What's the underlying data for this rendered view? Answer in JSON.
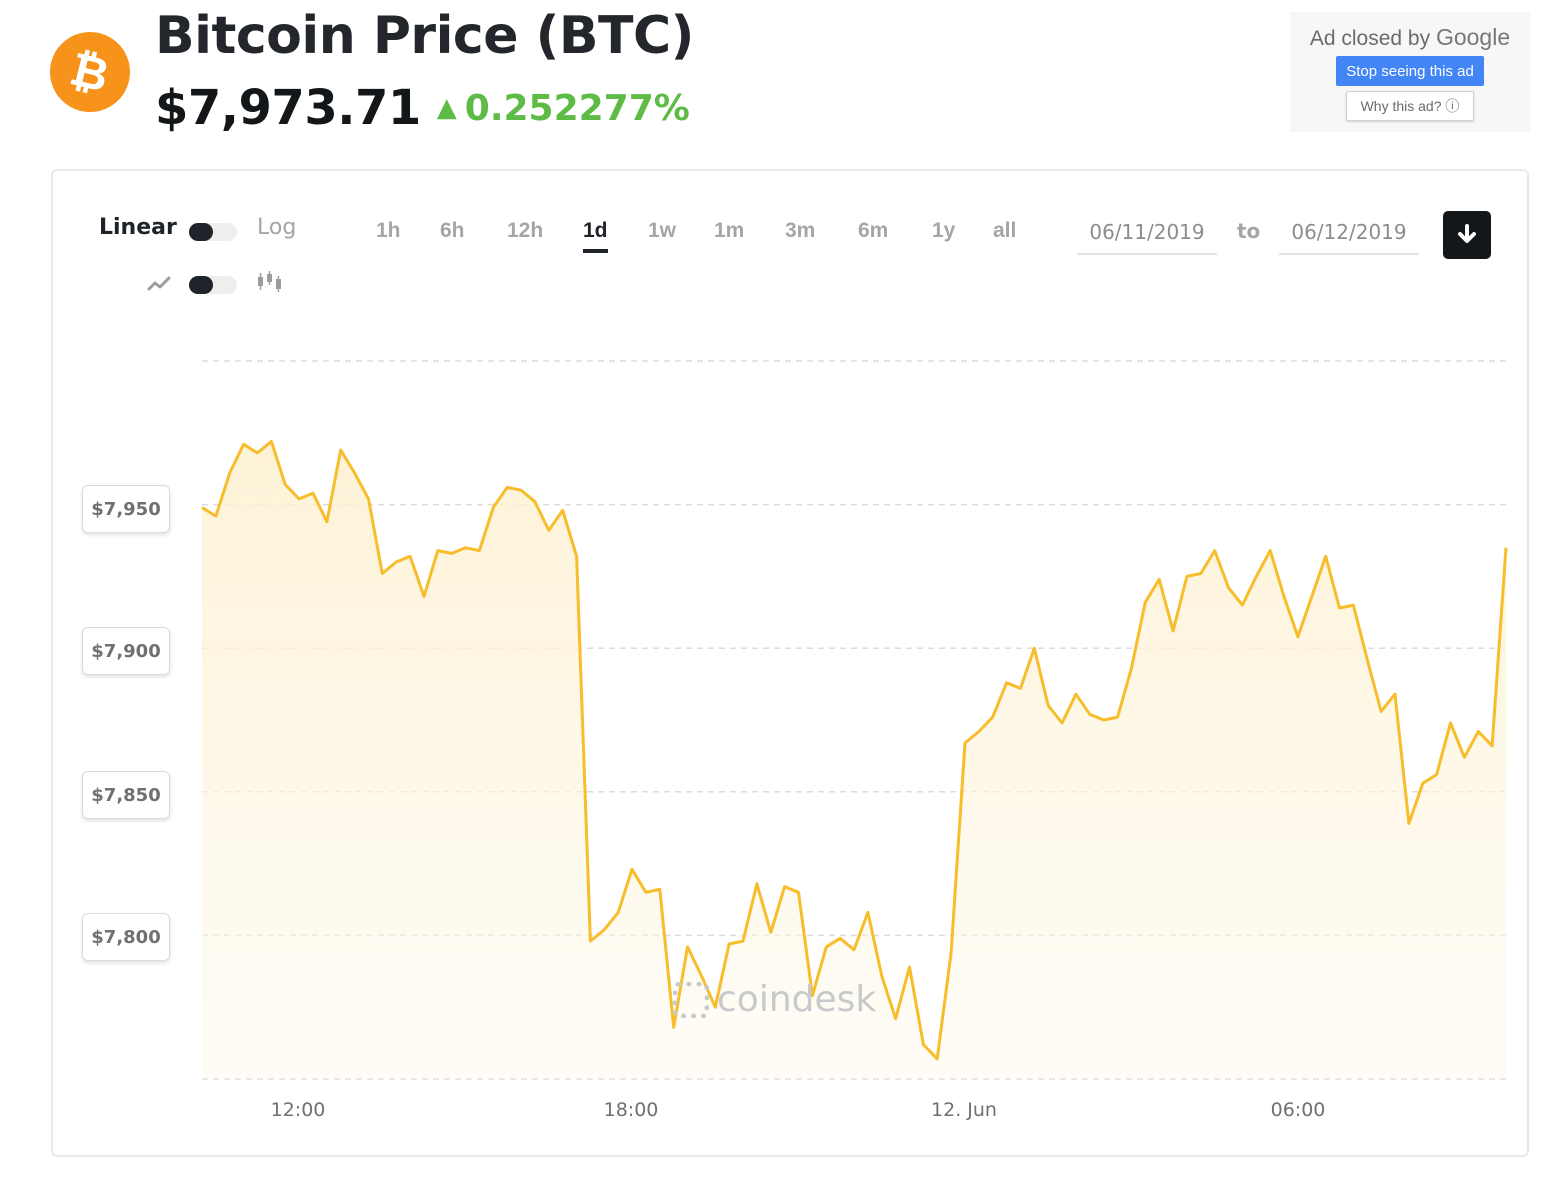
{
  "header": {
    "title": "Bitcoin Price (BTC)",
    "price": "$7,973.71",
    "change": "0.252277%",
    "change_direction": "up",
    "logo_icon": "bitcoin-icon",
    "colors": {
      "logo": "#f7931a",
      "positive": "#5dbb46"
    }
  },
  "ad": {
    "closed_text": "Ad closed by",
    "brand": "Google",
    "stop_label": "Stop seeing this ad",
    "why_label": "Why this ad? ⓘ"
  },
  "controls": {
    "scale_linear": "Linear",
    "scale_log": "Log",
    "line_icon": "line-chart-icon",
    "candle_icon": "candlestick-icon",
    "ranges": [
      "1h",
      "6h",
      "12h",
      "1d",
      "1w",
      "1m",
      "3m",
      "6m",
      "1y",
      "all"
    ],
    "active_range": "1d",
    "date_from": "06/11/2019",
    "date_to": "06/12/2019",
    "to_label": "to",
    "download_icon": "download-icon"
  },
  "watermark": "coindesk",
  "chart_data": {
    "type": "area",
    "title": "",
    "xlabel": "",
    "ylabel": "",
    "ylim": [
      7750,
      8000
    ],
    "xlim": [
      "2019-06-11 09:07",
      "2019-06-12 08:37"
    ],
    "y_ticks": [
      7800,
      7850,
      7900,
      7950
    ],
    "y_tick_labels": [
      "$7,800",
      "$7,850",
      "$7,900",
      "$7,950"
    ],
    "x_tick_labels": [
      "12:00",
      "18:00",
      "12. Jun",
      "06:00"
    ],
    "x_tick_values": [
      "2019-06-11 12:00",
      "2019-06-11 18:00",
      "2019-06-12 00:00",
      "2019-06-12 06:00"
    ],
    "grid": true,
    "line_color": "#f7bd2b",
    "series": [
      {
        "name": "",
        "values": [
          7949,
          7946,
          7961,
          7971,
          7968,
          7972,
          7957,
          7952,
          7954,
          7944,
          7969,
          7961,
          7952,
          7926,
          7930,
          7932,
          7918,
          7934,
          7933,
          7935,
          7934,
          7949,
          7956,
          7955,
          7951,
          7941,
          7948,
          7932,
          7798,
          7802,
          7808,
          7823,
          7815,
          7816,
          7768,
          7796,
          7786,
          7775,
          7797,
          7798,
          7818,
          7801,
          7817,
          7815,
          7779,
          7796,
          7799,
          7795,
          7808,
          7786,
          7771,
          7789,
          7762,
          7757,
          7794,
          7867,
          7871,
          7876,
          7888,
          7886,
          7900,
          7880,
          7874,
          7884,
          7877,
          7875,
          7876,
          7893,
          7916,
          7924,
          7906,
          7925,
          7926,
          7934,
          7921,
          7915,
          7925,
          7934,
          7918,
          7904,
          7918,
          7932,
          7914,
          7915,
          7896,
          7878,
          7884,
          7839,
          7853,
          7856,
          7874,
          7862,
          7871,
          7866,
          7935
        ]
      }
    ]
  }
}
